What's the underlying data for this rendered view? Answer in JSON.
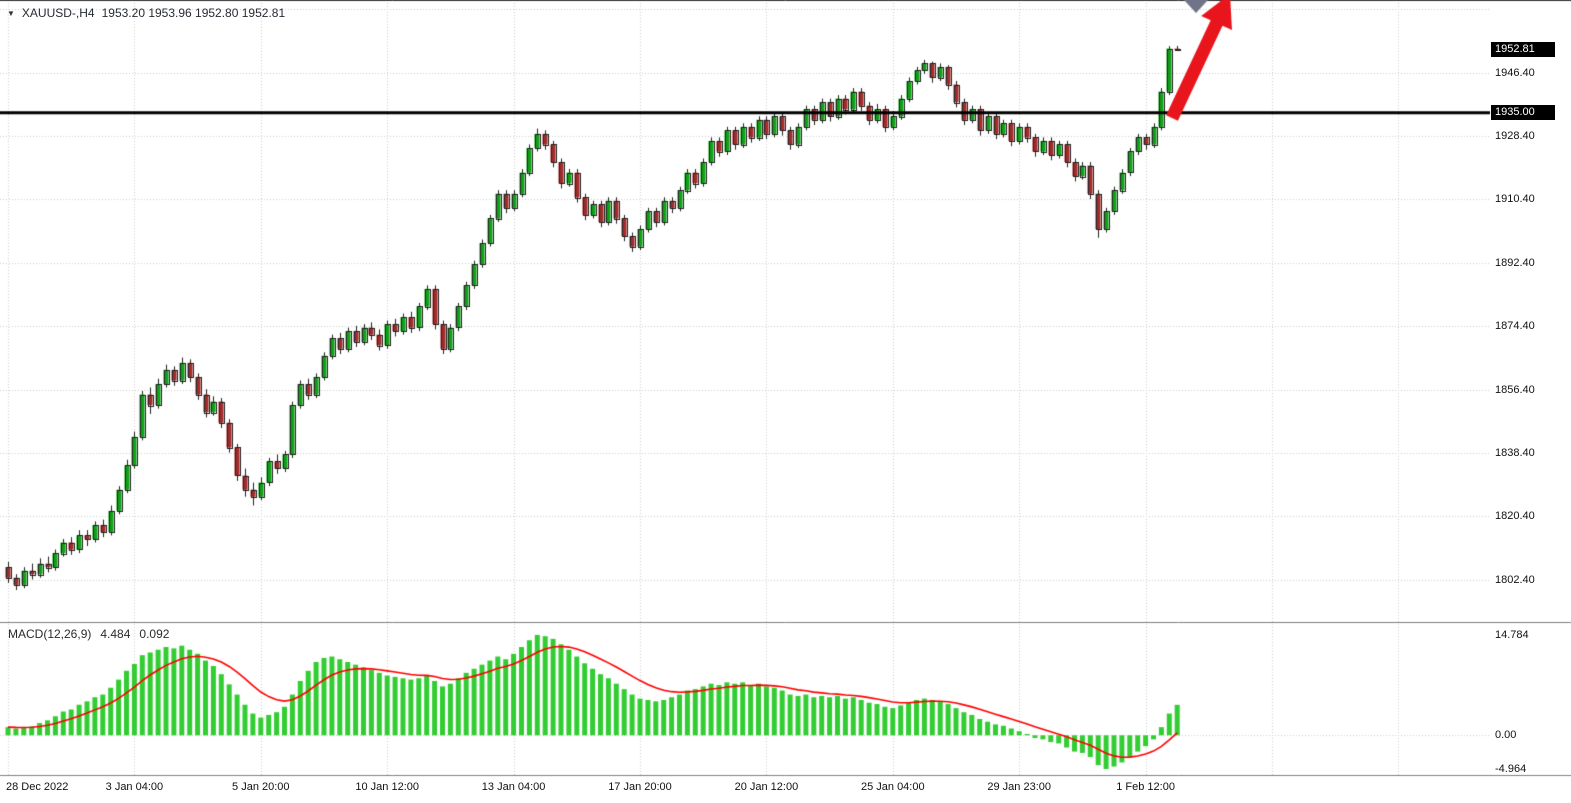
{
  "chart_data": {
    "type": "candlestick",
    "title": "XAUUSD-,H4",
    "quote_line": "1953.20 1953.96 1952.80 1952.81",
    "symbol_dropdown_icon": "▼",
    "price_axis": {
      "ylim": [
        1791,
        1967
      ],
      "tick_labels": [
        "1946.40",
        "1928.40",
        "1910.40",
        "1892.40",
        "1874.40",
        "1856.40",
        "1838.40",
        "1820.40",
        "1802.40"
      ],
      "current_price": "1952.81"
    },
    "hline": {
      "price": 1935.0,
      "label": "1935.00"
    },
    "time_axis": {
      "labels": [
        "28 Dec 2022",
        "3 Jan 04:00",
        "5 Jan 20:00",
        "10 Jan 12:00",
        "13 Jan 04:00",
        "17 Jan 20:00",
        "20 Jan 12:00",
        "25 Jan 04:00",
        "29 Jan 23:00",
        "1 Feb 12:00"
      ],
      "candles_per_label": 16
    },
    "candles": [
      [
        1806,
        1807.5,
        1801.5,
        1803
      ],
      [
        1803,
        1804,
        1799.5,
        1801
      ],
      [
        1801,
        1806,
        1800,
        1805
      ],
      [
        1805,
        1807,
        1802.5,
        1804
      ],
      [
        1804,
        1808.5,
        1803,
        1807
      ],
      [
        1807,
        1809,
        1804.5,
        1806
      ],
      [
        1806,
        1811,
        1805,
        1810
      ],
      [
        1810,
        1814,
        1809,
        1813
      ],
      [
        1813,
        1814.5,
        1809.5,
        1811
      ],
      [
        1811,
        1816.5,
        1810,
        1815
      ],
      [
        1815,
        1816.5,
        1812,
        1814
      ],
      [
        1814,
        1819,
        1813,
        1818
      ],
      [
        1818,
        1819.5,
        1814.5,
        1816
      ],
      [
        1816,
        1823.5,
        1815,
        1822
      ],
      [
        1822,
        1829,
        1821,
        1828
      ],
      [
        1828,
        1836.5,
        1827,
        1835
      ],
      [
        1835,
        1844.5,
        1834,
        1843
      ],
      [
        1843,
        1856,
        1842,
        1855
      ],
      [
        1855,
        1857,
        1849.5,
        1852
      ],
      [
        1852,
        1859.5,
        1851,
        1858
      ],
      [
        1858,
        1863.5,
        1857,
        1862
      ],
      [
        1862,
        1863,
        1857.5,
        1859
      ],
      [
        1859,
        1865.5,
        1858,
        1864
      ],
      [
        1864,
        1865,
        1858.5,
        1860
      ],
      [
        1860,
        1861,
        1853.5,
        1855
      ],
      [
        1855,
        1856.5,
        1848.5,
        1850
      ],
      [
        1850,
        1854.5,
        1849,
        1853
      ],
      [
        1853,
        1854,
        1845.5,
        1847
      ],
      [
        1847,
        1848,
        1838.5,
        1840
      ],
      [
        1840,
        1841,
        1830.5,
        1832
      ],
      [
        1832,
        1834,
        1826,
        1828
      ],
      [
        1828,
        1830,
        1823.5,
        1826
      ],
      [
        1826,
        1831.5,
        1825,
        1830
      ],
      [
        1830,
        1837,
        1829,
        1836
      ],
      [
        1836,
        1838,
        1832.5,
        1834
      ],
      [
        1834,
        1839,
        1833,
        1838
      ],
      [
        1838,
        1853,
        1837,
        1852
      ],
      [
        1852,
        1859,
        1851,
        1858
      ],
      [
        1858,
        1859.5,
        1853.5,
        1855
      ],
      [
        1855,
        1861,
        1854,
        1860
      ],
      [
        1860,
        1867,
        1859,
        1866
      ],
      [
        1866,
        1872,
        1865,
        1871
      ],
      [
        1871,
        1872.5,
        1866.5,
        1868
      ],
      [
        1868,
        1874,
        1867,
        1873
      ],
      [
        1873,
        1874.5,
        1868.5,
        1870
      ],
      [
        1870,
        1875,
        1869,
        1874
      ],
      [
        1874,
        1875.5,
        1870.5,
        1872
      ],
      [
        1872,
        1873.5,
        1867.5,
        1869
      ],
      [
        1869,
        1876,
        1868,
        1875
      ],
      [
        1875,
        1876.5,
        1871.5,
        1873
      ],
      [
        1873,
        1878,
        1872,
        1877
      ],
      [
        1877,
        1878.5,
        1872.5,
        1874
      ],
      [
        1874,
        1881,
        1873,
        1880
      ],
      [
        1880,
        1886,
        1879,
        1885
      ],
      [
        1885,
        1886,
        1873.5,
        1875
      ],
      [
        1875,
        1876,
        1866.5,
        1868
      ],
      [
        1868,
        1875,
        1867,
        1874
      ],
      [
        1874,
        1881,
        1873,
        1880
      ],
      [
        1880,
        1887,
        1879,
        1886
      ],
      [
        1886,
        1893,
        1885,
        1892
      ],
      [
        1892,
        1899,
        1891,
        1898
      ],
      [
        1898,
        1906,
        1897,
        1905
      ],
      [
        1905,
        1913,
        1904,
        1912
      ],
      [
        1912,
        1913,
        1906.5,
        1908
      ],
      [
        1908,
        1913,
        1907,
        1912
      ],
      [
        1912,
        1919,
        1911,
        1918
      ],
      [
        1918,
        1926,
        1917,
        1925
      ],
      [
        1925,
        1930.5,
        1924,
        1929
      ],
      [
        1929,
        1930,
        1924.5,
        1926
      ],
      [
        1926,
        1927,
        1919.5,
        1921
      ],
      [
        1921,
        1922,
        1913.5,
        1915
      ],
      [
        1915,
        1919,
        1914,
        1918
      ],
      [
        1918,
        1919,
        1909.5,
        1911
      ],
      [
        1911,
        1912,
        1904.5,
        1906
      ],
      [
        1906,
        1910,
        1905,
        1909
      ],
      [
        1909,
        1910,
        1902.5,
        1904
      ],
      [
        1904,
        1911,
        1903,
        1910
      ],
      [
        1910,
        1911,
        1903.5,
        1905
      ],
      [
        1905,
        1906,
        1898.5,
        1900
      ],
      [
        1900,
        1901,
        1895.5,
        1897
      ],
      [
        1897,
        1903,
        1896,
        1902
      ],
      [
        1902,
        1908,
        1901,
        1907
      ],
      [
        1907,
        1908,
        1902.5,
        1904
      ],
      [
        1904,
        1911,
        1903,
        1910
      ],
      [
        1910,
        1911,
        1906.5,
        1908
      ],
      [
        1908,
        1914,
        1907,
        1913
      ],
      [
        1913,
        1919,
        1912,
        1918
      ],
      [
        1918,
        1919,
        1913.5,
        1915
      ],
      [
        1915,
        1922,
        1914,
        1921
      ],
      [
        1921,
        1928,
        1920,
        1927
      ],
      [
        1927,
        1928,
        1922.5,
        1924
      ],
      [
        1924,
        1931,
        1923,
        1930
      ],
      [
        1930,
        1931,
        1924.5,
        1926
      ],
      [
        1926,
        1932,
        1925,
        1931
      ],
      [
        1931,
        1932,
        1926.5,
        1928
      ],
      [
        1928,
        1934,
        1927,
        1933
      ],
      [
        1933,
        1934,
        1927.5,
        1929
      ],
      [
        1929,
        1935,
        1928,
        1934
      ],
      [
        1934,
        1935,
        1928.5,
        1930
      ],
      [
        1930,
        1931,
        1924.5,
        1926
      ],
      [
        1926,
        1932,
        1925,
        1931
      ],
      [
        1931,
        1937,
        1930,
        1936
      ],
      [
        1936,
        1937,
        1931.5,
        1933
      ],
      [
        1933,
        1939,
        1932,
        1938
      ],
      [
        1938,
        1939,
        1932.5,
        1934
      ],
      [
        1934,
        1940,
        1933,
        1939
      ],
      [
        1939,
        1940,
        1934.5,
        1936
      ],
      [
        1936,
        1942,
        1935,
        1941
      ],
      [
        1941,
        1942,
        1935.5,
        1937
      ],
      [
        1937,
        1938,
        1931.5,
        1933
      ],
      [
        1933,
        1937.5,
        1932,
        1936
      ],
      [
        1936,
        1937,
        1929.5,
        1931
      ],
      [
        1931,
        1935.5,
        1930,
        1934
      ],
      [
        1934,
        1940,
        1933,
        1939
      ],
      [
        1939,
        1945,
        1938,
        1944
      ],
      [
        1944,
        1948,
        1943,
        1947
      ],
      [
        1947,
        1950,
        1946,
        1949
      ],
      [
        1949,
        1949.5,
        1943.5,
        1945
      ],
      [
        1945,
        1949,
        1944,
        1948
      ],
      [
        1948,
        1948.5,
        1941.5,
        1943
      ],
      [
        1943,
        1944,
        1936.5,
        1938
      ],
      [
        1938,
        1939,
        1931.5,
        1933
      ],
      [
        1933,
        1937,
        1932,
        1936
      ],
      [
        1936,
        1937,
        1928.5,
        1930
      ],
      [
        1930,
        1935,
        1929,
        1934
      ],
      [
        1934,
        1935,
        1927.5,
        1929
      ],
      [
        1929,
        1933,
        1928,
        1932
      ],
      [
        1932,
        1933,
        1925.5,
        1927
      ],
      [
        1927,
        1932,
        1926,
        1931
      ],
      [
        1931,
        1932,
        1926.5,
        1928
      ],
      [
        1928,
        1929,
        1922.5,
        1924
      ],
      [
        1924,
        1928,
        1923,
        1927
      ],
      [
        1927,
        1928,
        1921.5,
        1923
      ],
      [
        1923,
        1927,
        1922,
        1926
      ],
      [
        1926,
        1927,
        1919.5,
        1921
      ],
      [
        1921,
        1922,
        1915.5,
        1917
      ],
      [
        1917,
        1921,
        1916,
        1920
      ],
      [
        1920,
        1921,
        1910.5,
        1912
      ],
      [
        1912,
        1913,
        1899.5,
        1902
      ],
      [
        1902,
        1908,
        1901,
        1907
      ],
      [
        1907,
        1914,
        1906,
        1913
      ],
      [
        1913,
        1919,
        1912,
        1918
      ],
      [
        1918,
        1925,
        1917,
        1924
      ],
      [
        1924,
        1929,
        1923,
        1928
      ],
      [
        1928,
        1929,
        1924.5,
        1926
      ],
      [
        1926,
        1932,
        1925,
        1931
      ],
      [
        1931,
        1942,
        1930,
        1941
      ],
      [
        1941,
        1953.9,
        1940,
        1953.2
      ],
      [
        1953.2,
        1953.96,
        1952.8,
        1952.81
      ]
    ],
    "macd": {
      "name": "MACD(12,26,9)",
      "macd_value": "4.484",
      "signal_value": "0.092",
      "axis_labels": [
        "14.784",
        "0.00",
        "-4.964"
      ],
      "ylim": [
        -5.85,
        16.54
      ],
      "signal_period": 9,
      "histogram": [
        1.2,
        1.0,
        1.1,
        1.3,
        1.8,
        2.2,
        2.8,
        3.5,
        3.8,
        4.5,
        5.0,
        5.6,
        6.0,
        7.0,
        8.2,
        9.5,
        10.5,
        11.8,
        12.2,
        12.6,
        13.0,
        12.8,
        13.2,
        12.6,
        12.0,
        11.0,
        10.2,
        9.0,
        7.5,
        6.0,
        4.5,
        3.2,
        2.6,
        3.0,
        3.4,
        4.2,
        6.0,
        8.0,
        9.5,
        10.8,
        11.4,
        11.6,
        11.2,
        10.8,
        10.4,
        10.0,
        9.6,
        9.2,
        8.8,
        8.6,
        8.4,
        8.2,
        8.4,
        8.8,
        8.0,
        7.2,
        7.6,
        8.4,
        9.2,
        9.8,
        10.4,
        11.0,
        11.6,
        11.2,
        12.0,
        13.0,
        14.0,
        14.784,
        14.6,
        14.2,
        13.4,
        12.6,
        11.6,
        10.6,
        9.8,
        9.0,
        8.4,
        7.6,
        6.8,
        6.0,
        5.4,
        5.2,
        5.0,
        5.2,
        5.6,
        6.0,
        6.6,
        6.8,
        7.2,
        7.6,
        7.4,
        7.8,
        7.6,
        7.8,
        7.4,
        7.6,
        7.2,
        7.0,
        6.6,
        6.0,
        5.8,
        6.0,
        5.6,
        5.8,
        5.6,
        5.8,
        5.4,
        5.6,
        5.2,
        4.8,
        4.6,
        4.2,
        4.0,
        4.4,
        4.8,
        5.2,
        5.4,
        5.2,
        5.0,
        4.6,
        4.0,
        3.4,
        3.0,
        2.4,
        2.0,
        1.6,
        1.4,
        1.0,
        0.6,
        0.2,
        -0.4,
        -0.6,
        -1.0,
        -1.2,
        -1.8,
        -2.4,
        -2.6,
        -3.2,
        -4.4,
        -4.964,
        -4.6,
        -4.0,
        -3.2,
        -2.4,
        -1.6,
        -0.6,
        1.2,
        3.2,
        4.484
      ]
    },
    "annotations": {
      "trend_arrow": "up-right"
    },
    "colors": {
      "background": "#ffffff",
      "grid": "#cfcfcf",
      "bull": "#0da315",
      "bear": "#a52a2a",
      "wick": "#222222",
      "histogram": "#32cd32",
      "signal_line": "#ff0000",
      "hline": "#000000",
      "arrow": "#e9151d",
      "arrow_artifact": "#6f7586",
      "separator": "#808080",
      "axis_text": "#111111",
      "label_box_bg": "#000000",
      "label_box_text": "#ffffff"
    }
  }
}
